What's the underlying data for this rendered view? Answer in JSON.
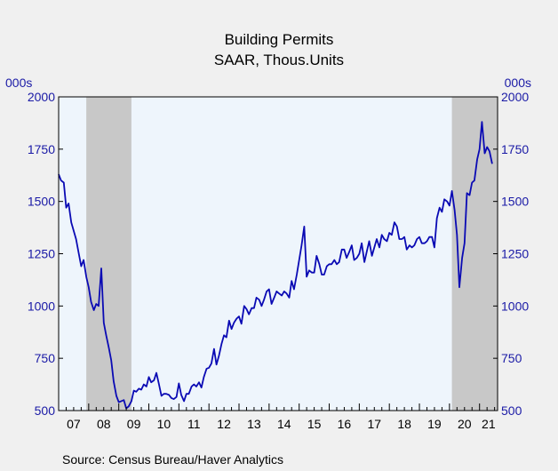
{
  "chart_data": {
    "type": "line",
    "title": "Building Permits",
    "subtitle": "SAAR, Thous.Units",
    "y_unit_left": "000s",
    "y_unit_right": "000s",
    "ylim": [
      500,
      2000
    ],
    "yticks": [
      500,
      750,
      1000,
      1250,
      1500,
      1750,
      2000
    ],
    "xlim": [
      2007.0,
      2021.6
    ],
    "xtick_labels": [
      "07",
      "08",
      "09",
      "10",
      "11",
      "12",
      "13",
      "14",
      "15",
      "16",
      "17",
      "18",
      "19",
      "20",
      "21"
    ],
    "recessions": [
      [
        2007.92,
        2009.42
      ],
      [
        2020.08,
        2021.6
      ]
    ],
    "grid": false,
    "legend": "none",
    "colors": {
      "line": "#0a0ab4",
      "recession": "#c8c8c8",
      "plot_bg": "#eef5fc",
      "axis_text": "#1a1aa6"
    },
    "series": [
      {
        "x": [
          2007.0,
          2007.08,
          2007.17,
          2007.25,
          2007.33,
          2007.42,
          2007.5,
          2007.58,
          2007.67,
          2007.75,
          2007.83,
          2007.92,
          2008.0,
          2008.08,
          2008.17,
          2008.25,
          2008.33,
          2008.42,
          2008.5,
          2008.58,
          2008.67,
          2008.75,
          2008.83,
          2008.92,
          2009.0,
          2009.08,
          2009.17,
          2009.25,
          2009.33,
          2009.42,
          2009.5,
          2009.58,
          2009.67,
          2009.75,
          2009.83,
          2009.92,
          2010.0,
          2010.08,
          2010.17,
          2010.25,
          2010.33,
          2010.42,
          2010.5,
          2010.58,
          2010.67,
          2010.75,
          2010.83,
          2010.92,
          2011.0,
          2011.08,
          2011.17,
          2011.25,
          2011.33,
          2011.42,
          2011.5,
          2011.58,
          2011.67,
          2011.75,
          2011.83,
          2011.92,
          2012.0,
          2012.08,
          2012.17,
          2012.25,
          2012.33,
          2012.42,
          2012.5,
          2012.58,
          2012.67,
          2012.75,
          2012.83,
          2012.92,
          2013.0,
          2013.08,
          2013.17,
          2013.25,
          2013.33,
          2013.42,
          2013.5,
          2013.58,
          2013.67,
          2013.75,
          2013.83,
          2013.92,
          2014.0,
          2014.08,
          2014.17,
          2014.25,
          2014.33,
          2014.42,
          2014.5,
          2014.58,
          2014.67,
          2014.75,
          2014.83,
          2014.92,
          2015.0,
          2015.08,
          2015.17,
          2015.25,
          2015.33,
          2015.42,
          2015.5,
          2015.58,
          2015.67,
          2015.75,
          2015.83,
          2015.92,
          2016.0,
          2016.08,
          2016.17,
          2016.25,
          2016.33,
          2016.42,
          2016.5,
          2016.58,
          2016.67,
          2016.75,
          2016.83,
          2016.92,
          2017.0,
          2017.08,
          2017.17,
          2017.25,
          2017.33,
          2017.42,
          2017.5,
          2017.58,
          2017.67,
          2017.75,
          2017.83,
          2017.92,
          2018.0,
          2018.08,
          2018.17,
          2018.25,
          2018.33,
          2018.42,
          2018.5,
          2018.58,
          2018.67,
          2018.75,
          2018.83,
          2018.92,
          2019.0,
          2019.08,
          2019.17,
          2019.25,
          2019.33,
          2019.42,
          2019.5,
          2019.58,
          2019.67,
          2019.75,
          2019.83,
          2019.92,
          2020.0,
          2020.08,
          2020.17,
          2020.25,
          2020.33,
          2020.42,
          2020.5,
          2020.58,
          2020.67,
          2020.75,
          2020.83,
          2020.92,
          2021.0,
          2021.08,
          2021.17,
          2021.25,
          2021.33,
          2021.42
        ],
        "y": [
          1630,
          1600,
          1590,
          1470,
          1490,
          1400,
          1360,
          1320,
          1250,
          1190,
          1220,
          1140,
          1090,
          1020,
          980,
          1010,
          1000,
          1180,
          920,
          860,
          800,
          740,
          640,
          570,
          540,
          545,
          550,
          510,
          520,
          545,
          595,
          590,
          605,
          600,
          625,
          615,
          660,
          635,
          645,
          680,
          630,
          570,
          580,
          580,
          575,
          560,
          555,
          565,
          630,
          575,
          545,
          580,
          580,
          615,
          625,
          615,
          635,
          610,
          660,
          700,
          705,
          725,
          795,
          720,
          760,
          820,
          860,
          850,
          930,
          890,
          920,
          940,
          950,
          915,
          1000,
          985,
          960,
          990,
          990,
          1040,
          1030,
          1000,
          1030,
          1070,
          1080,
          1010,
          1040,
          1070,
          1060,
          1050,
          1070,
          1060,
          1040,
          1120,
          1080,
          1150,
          1220,
          1290,
          1380,
          1140,
          1170,
          1160,
          1160,
          1240,
          1200,
          1150,
          1150,
          1190,
          1200,
          1200,
          1220,
          1200,
          1210,
          1270,
          1270,
          1230,
          1260,
          1290,
          1220,
          1230,
          1250,
          1300,
          1210,
          1260,
          1310,
          1240,
          1280,
          1320,
          1280,
          1340,
          1320,
          1310,
          1350,
          1340,
          1400,
          1380,
          1320,
          1320,
          1330,
          1270,
          1290,
          1280,
          1290,
          1320,
          1330,
          1300,
          1300,
          1310,
          1330,
          1330,
          1280,
          1420,
          1470,
          1450,
          1510,
          1500,
          1480,
          1550,
          1460,
          1340,
          1090,
          1230,
          1300,
          1540,
          1530,
          1590,
          1600,
          1700,
          1750,
          1880,
          1730,
          1760,
          1740,
          1680
        ]
      }
    ]
  },
  "footer": {
    "source": "Source:   Census Bureau/Haver Analytics"
  }
}
